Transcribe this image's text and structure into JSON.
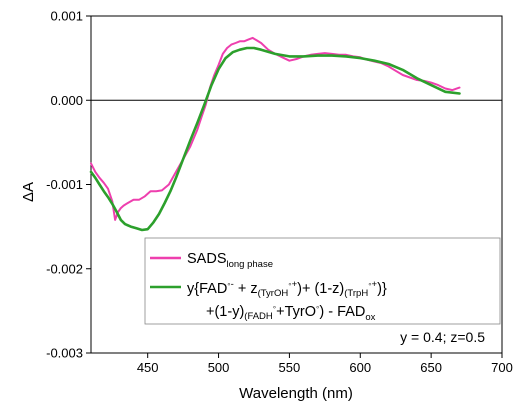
{
  "chart_data": {
    "type": "line",
    "xlabel": "Wavelength (nm)",
    "ylabel": "ΔA",
    "xlim": [
      410,
      700
    ],
    "ylim": [
      -0.003,
      0.001
    ],
    "x_ticks": [
      450,
      500,
      550,
      600,
      650,
      700
    ],
    "x_tick_labels": [
      "450",
      "500",
      "550",
      "600",
      "650",
      "700"
    ],
    "y_ticks": [
      -0.003,
      -0.002,
      -0.001,
      0.0,
      0.001
    ],
    "y_tick_labels": [
      "-0.003",
      "-0.002",
      "-0.001",
      "0.000",
      "0.001"
    ],
    "zero_line": 0.0,
    "grid": false,
    "legend_position": "bottom-right",
    "series": [
      {
        "color": "#ee3fae",
        "legend": {
          "main": "SADS",
          "sub": "long phase"
        },
        "x": [
          410,
          413,
          416,
          419,
          422,
          425,
          427,
          429,
          431,
          433,
          436,
          440,
          444,
          448,
          452,
          456,
          460,
          465,
          470,
          475,
          480,
          485,
          488,
          491,
          494,
          497,
          500,
          503,
          506,
          509,
          512,
          515,
          518,
          521,
          524,
          527,
          530,
          535,
          540,
          545,
          550,
          555,
          560,
          565,
          570,
          575,
          580,
          585,
          590,
          595,
          600,
          605,
          610,
          615,
          620,
          625,
          630,
          635,
          640,
          645,
          650,
          655,
          660,
          665,
          670
        ],
        "y": [
          -0.00075,
          -0.00085,
          -0.00092,
          -0.00098,
          -0.00105,
          -0.0012,
          -0.00142,
          -0.00133,
          -0.00128,
          -0.00125,
          -0.00122,
          -0.00118,
          -0.00118,
          -0.00114,
          -0.00108,
          -0.00108,
          -0.00107,
          -0.001,
          -0.00085,
          -0.0007,
          -0.00055,
          -0.00035,
          -0.0002,
          -5e-05,
          0.00015,
          0.0003,
          0.00042,
          0.00055,
          0.00062,
          0.00066,
          0.00068,
          0.0007,
          0.0007,
          0.00072,
          0.00074,
          0.00071,
          0.00068,
          0.0006,
          0.00055,
          0.00051,
          0.00047,
          0.00049,
          0.00052,
          0.00054,
          0.00055,
          0.00056,
          0.00055,
          0.00054,
          0.00054,
          0.00052,
          0.00051,
          0.00048,
          0.00046,
          0.00044,
          0.0004,
          0.00035,
          0.0003,
          0.00027,
          0.00024,
          0.00023,
          0.00021,
          0.00018,
          0.00014,
          0.00012,
          0.00015
        ]
      },
      {
        "color": "#2ca02c",
        "legend": {
          "line1": "y{FAD",
          "line1_sup1": "◦-",
          "line1_mid1": " + z",
          "line1_mid2": "(TyrOH",
          "line1_sup2": "◦+",
          "line1_mid3": ")+ (1-z)",
          "line1_mid4": "(TrpH",
          "line1_sup3": "◦+",
          "line1_end": ")}",
          "line2": "+(1-y)",
          "line2_mid": "(FADH",
          "line2_sup1": "◦",
          "line2_mid2": "+TyrO",
          "line2_sup2": "◦",
          "line2_mid3": ") - FAD",
          "line2_sub": "ox"
        },
        "x": [
          410,
          413,
          416,
          419,
          422,
          425,
          428,
          431,
          434,
          438,
          442,
          446,
          450,
          454,
          458,
          462,
          466,
          470,
          475,
          480,
          485,
          490,
          495,
          500,
          505,
          510,
          515,
          520,
          525,
          530,
          540,
          550,
          560,
          570,
          580,
          590,
          600,
          610,
          620,
          630,
          640,
          650,
          660,
          670
        ],
        "y": [
          -0.00085,
          -0.00092,
          -0.001,
          -0.00108,
          -0.00115,
          -0.00123,
          -0.00132,
          -0.00142,
          -0.00147,
          -0.0015,
          -0.00152,
          -0.00154,
          -0.00153,
          -0.00145,
          -0.00135,
          -0.00122,
          -0.00108,
          -0.00092,
          -0.0007,
          -0.00048,
          -0.00027,
          -5e-05,
          0.00018,
          0.00037,
          0.0005,
          0.00057,
          0.0006,
          0.00062,
          0.00062,
          0.0006,
          0.00055,
          0.00052,
          0.00052,
          0.00053,
          0.00053,
          0.00052,
          0.0005,
          0.00047,
          0.00043,
          0.00036,
          0.00026,
          0.00018,
          0.0001,
          8e-05
        ]
      }
    ],
    "annotation": "y = 0.4; z=0.5"
  }
}
